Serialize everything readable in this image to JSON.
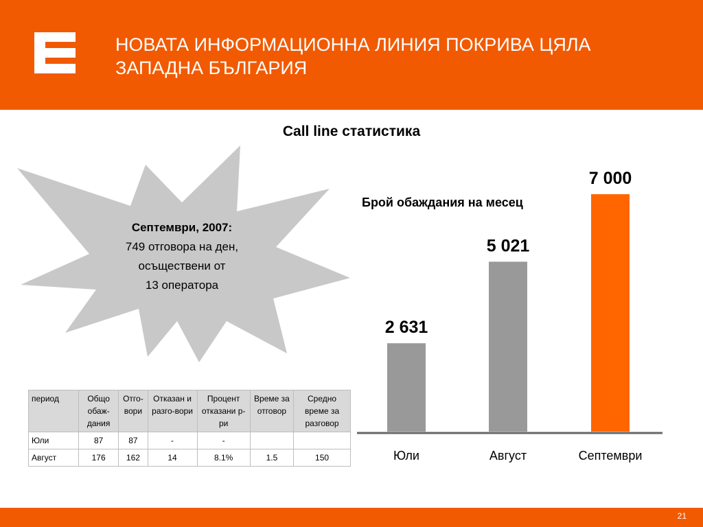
{
  "slide": {
    "title": "НОВАТА ИНФОРМАЦИОННА ЛИНИЯ ПОКРИВА ЦЯЛА\nЗАПАДНА БЪЛГАРИЯ",
    "page_number": "21",
    "colors": {
      "brand": "#f15a00",
      "header_bg": "#f15a00",
      "starburst": "#c8c8c8"
    }
  },
  "logo": {
    "icon": "cez-logo-icon"
  },
  "starburst": {
    "heading": "Септември, 2007:",
    "line1": "749 отговора на ден,",
    "line2": "осъществени от",
    "line3": "13 оператора"
  },
  "chart_data": {
    "type": "bar",
    "title": "Call line статистика",
    "subtitle": "Брой обаждания на месец",
    "categories": [
      "Юли",
      "Август",
      "Септември"
    ],
    "values": [
      2631,
      5021,
      7000
    ],
    "value_labels": [
      "2 631",
      "5 021",
      "7 000"
    ],
    "colors": [
      "#999999",
      "#999999",
      "#ff6600"
    ],
    "xlabel": "",
    "ylabel": "",
    "ylim": [
      0,
      7000
    ],
    "grid": false,
    "legend": "none"
  },
  "table": {
    "headers": [
      "период",
      "Общо обаж-дания",
      "Отго-вори",
      "Отказан и разго-вори",
      "Процент отказани р-ри",
      "Време за отговор",
      "Средно време за разговор"
    ],
    "rows": [
      [
        "Юли",
        "87",
        "87",
        "-",
        "-",
        "",
        ""
      ],
      [
        "Август",
        "176",
        "162",
        "14",
        "8.1%",
        "1.5",
        "150"
      ]
    ]
  }
}
